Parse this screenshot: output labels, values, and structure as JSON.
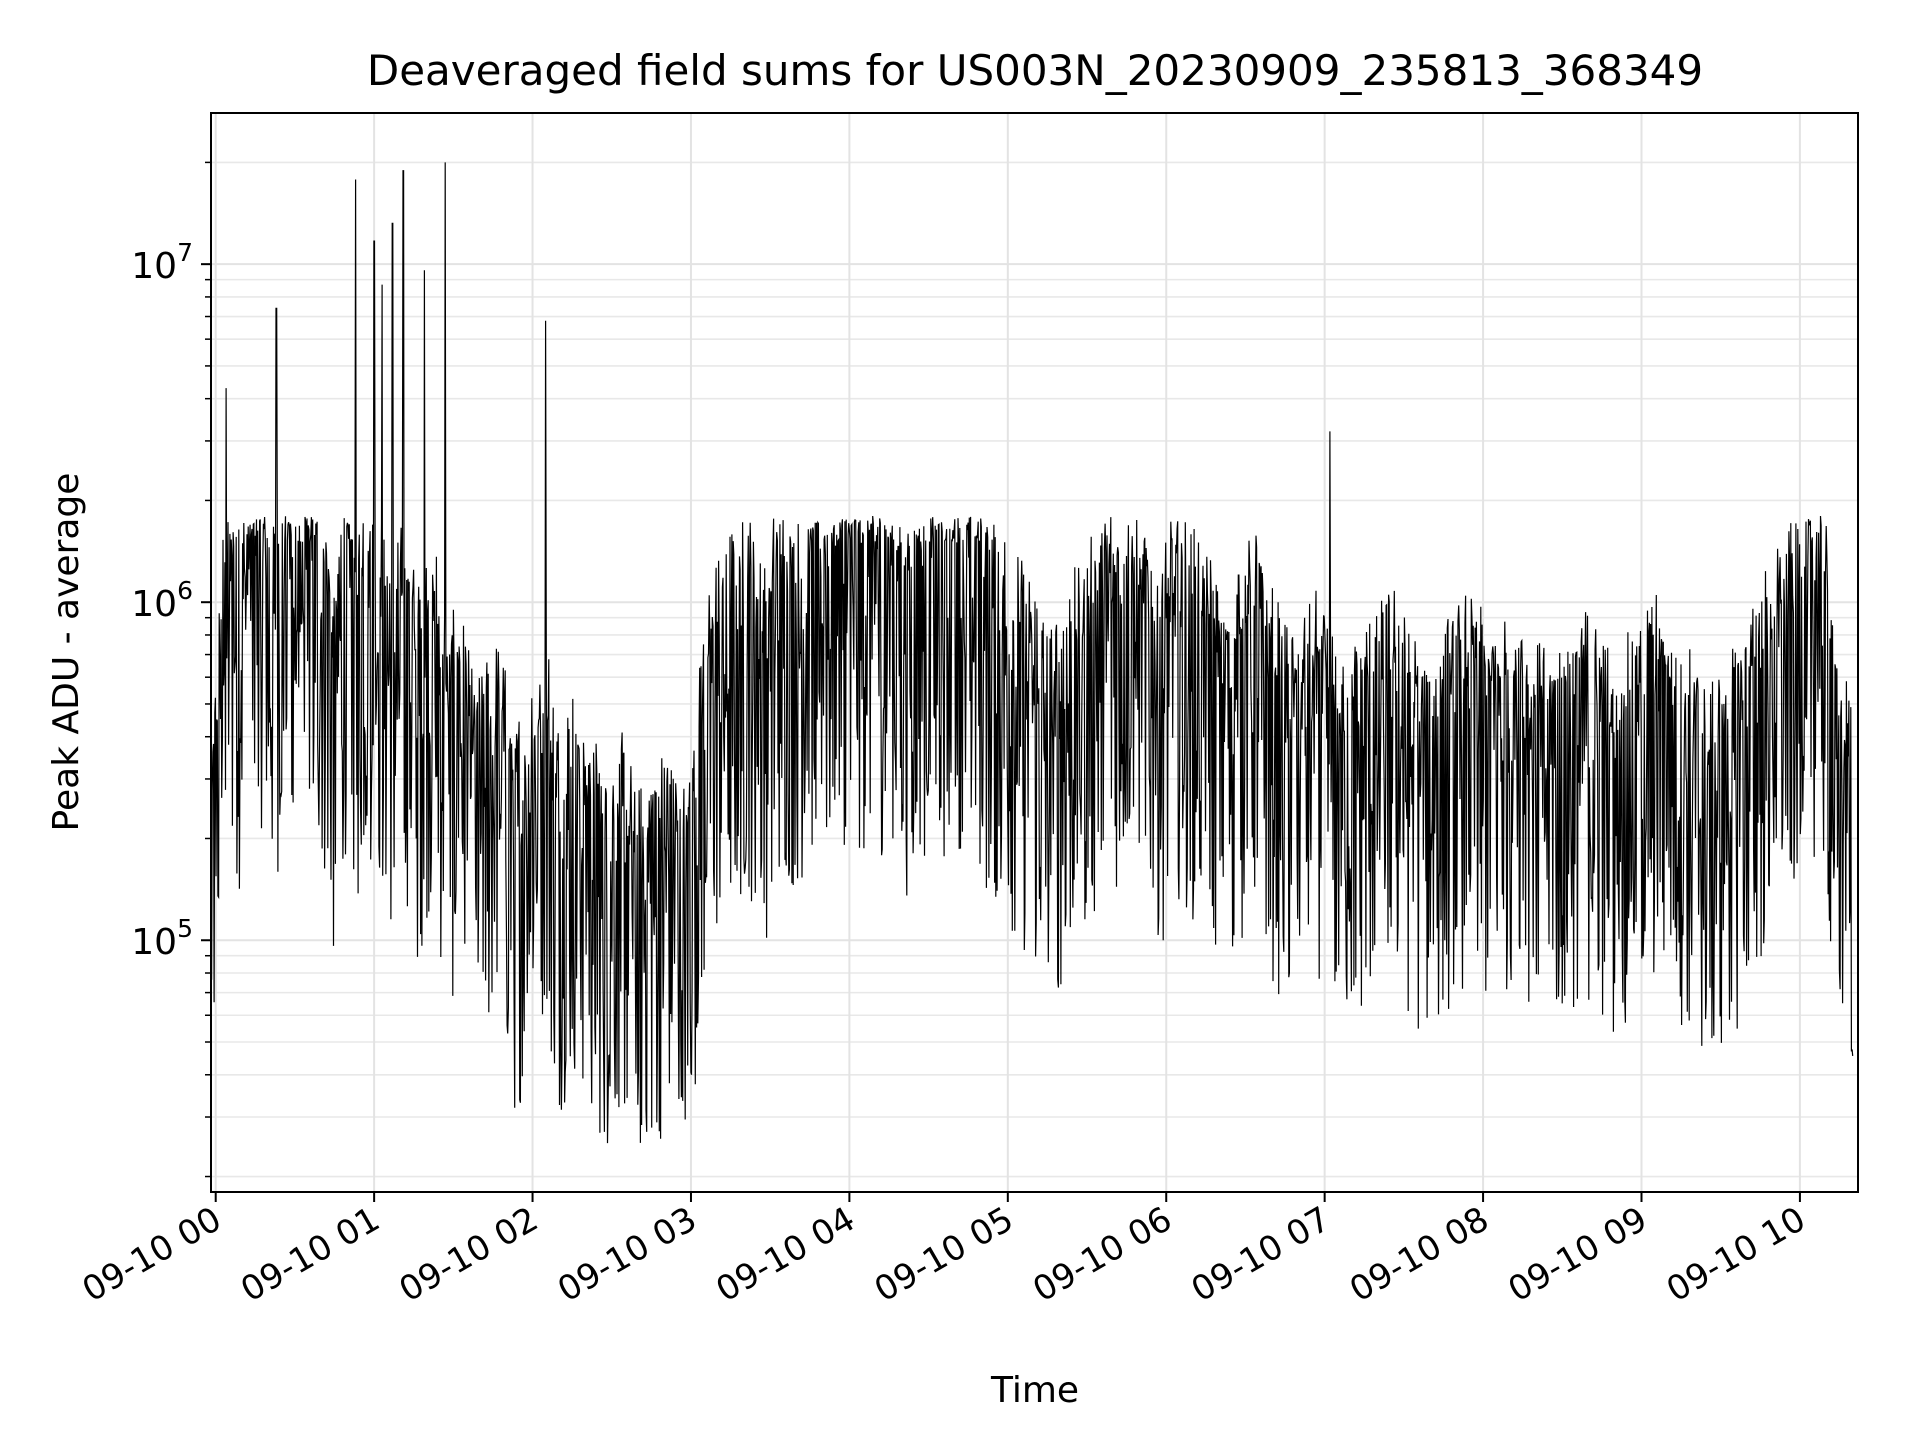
{
  "chart_data": {
    "type": "line",
    "title": "Deaveraged field sums for US003N_20230909_235813_368349",
    "xlabel": "Time",
    "ylabel": "Peak ADU - average",
    "yscale": "log",
    "grid": true,
    "legend": "none",
    "x_range": [
      "2023-09-09 23:58:13",
      "2023-09-10 10:22:00"
    ],
    "ylim": [
      18000,
      28000000
    ],
    "x_ticks": [
      "09-10 00",
      "09-10 01",
      "09-10 02",
      "09-10 03",
      "09-10 04",
      "09-10 05",
      "09-10 06",
      "09-10 07",
      "09-10 08",
      "09-10 09",
      "09-10 10"
    ],
    "y_ticks": [
      {
        "base": "10",
        "exp": "5",
        "value": 100000
      },
      {
        "base": "10",
        "exp": "6",
        "value": 1000000
      },
      {
        "base": "10",
        "exp": "7",
        "value": 10000000
      }
    ],
    "line_color": "#000000",
    "series": [
      {
        "x": [
          "2023-09-09 23:58:13",
          "2023-09-10 00:04",
          "2023-09-10 00:10",
          "2023-09-10 00:16",
          "2023-09-10 00:20",
          "2023-09-10 00:26",
          "2023-09-10 00:30",
          "2023-09-10 00:34",
          "2023-09-10 00:38",
          "2023-09-10 00:42",
          "2023-09-10 00:45",
          "2023-09-10 00:50",
          "2023-09-10 00:53",
          "2023-09-10 00:56",
          "2023-09-10 01:00",
          "2023-09-10 01:04",
          "2023-09-10 01:08",
          "2023-09-10 01:12",
          "2023-09-10 01:16",
          "2023-09-10 01:20",
          "2023-09-10 01:24",
          "2023-09-10 01:28",
          "2023-09-10 01:33",
          "2023-09-10 01:38",
          "2023-09-10 01:43",
          "2023-09-10 01:48",
          "2023-09-10 01:53",
          "2023-09-10 01:58",
          "2023-09-10 02:05",
          "2023-09-10 02:10",
          "2023-09-10 02:16",
          "2023-09-10 02:22",
          "2023-09-10 02:28",
          "2023-09-10 02:34",
          "2023-09-10 02:40",
          "2023-09-10 02:46",
          "2023-09-10 02:52",
          "2023-09-10 02:58",
          "2023-09-10 03:04",
          "2023-09-10 03:10",
          "2023-09-10 03:16",
          "2023-09-10 03:22",
          "2023-09-10 03:28",
          "2023-09-10 03:34",
          "2023-09-10 03:40",
          "2023-09-10 03:46",
          "2023-09-10 03:52",
          "2023-09-10 03:58",
          "2023-09-10 04:04",
          "2023-09-10 04:10",
          "2023-09-10 04:16",
          "2023-09-10 04:22",
          "2023-09-10 04:28",
          "2023-09-10 04:34",
          "2023-09-10 04:40",
          "2023-09-10 04:46",
          "2023-09-10 04:52",
          "2023-09-10 04:58",
          "2023-09-10 05:04",
          "2023-09-10 05:10",
          "2023-09-10 05:16",
          "2023-09-10 05:22",
          "2023-09-10 05:28",
          "2023-09-10 05:34",
          "2023-09-10 05:40",
          "2023-09-10 05:46",
          "2023-09-10 05:52",
          "2023-09-10 05:58",
          "2023-09-10 06:04",
          "2023-09-10 06:10",
          "2023-09-10 06:16",
          "2023-09-10 06:22",
          "2023-09-10 06:28",
          "2023-09-10 06:34",
          "2023-09-10 06:40",
          "2023-09-10 06:46",
          "2023-09-10 06:52",
          "2023-09-10 06:58",
          "2023-09-10 07:02",
          "2023-09-10 07:08",
          "2023-09-10 07:14",
          "2023-09-10 07:20",
          "2023-09-10 07:26",
          "2023-09-10 07:32",
          "2023-09-10 07:38",
          "2023-09-10 07:44",
          "2023-09-10 07:50",
          "2023-09-10 07:56",
          "2023-09-10 08:02",
          "2023-09-10 08:08",
          "2023-09-10 08:14",
          "2023-09-10 08:20",
          "2023-09-10 08:26",
          "2023-09-10 08:32",
          "2023-09-10 08:38",
          "2023-09-10 08:44",
          "2023-09-10 08:50",
          "2023-09-10 08:56",
          "2023-09-10 09:02",
          "2023-09-10 09:08",
          "2023-09-10 09:14",
          "2023-09-10 09:20",
          "2023-09-10 09:26",
          "2023-09-10 09:32",
          "2023-09-10 09:38",
          "2023-09-10 09:44",
          "2023-09-10 09:50",
          "2023-09-10 09:56",
          "2023-09-10 10:02",
          "2023-09-10 10:08",
          "2023-09-10 10:14",
          "2023-09-10 10:20"
        ],
        "y": [
          120000,
          900000,
          700000,
          1500000,
          600000,
          1000000,
          800000,
          1200000,
          900000,
          700000,
          400000,
          1100000,
          600000,
          800000,
          900000,
          600000,
          500000,
          700000,
          400000,
          600000,
          500000,
          300000,
          400000,
          200000,
          250000,
          300000,
          150000,
          200000,
          300000,
          150000,
          200000,
          150000,
          120000,
          150000,
          100000,
          120000,
          150000,
          100000,
          300000,
          500000,
          600000,
          700000,
          500000,
          800000,
          700000,
          900000,
          800000,
          1000000,
          900000,
          1000000,
          800000,
          700000,
          900000,
          800000,
          1000000,
          900000,
          700000,
          600000,
          500000,
          400000,
          300000,
          400000,
          500000,
          600000,
          700000,
          800000,
          600000,
          500000,
          700000,
          600000,
          500000,
          400000,
          500000,
          600000,
          400000,
          300000,
          350000,
          400000,
          300000,
          250000,
          300000,
          350000,
          400000,
          300000,
          250000,
          300000,
          350000,
          400000,
          300000,
          350000,
          400000,
          300000,
          250000,
          300000,
          350000,
          300000,
          250000,
          300000,
          350000,
          400000,
          300000,
          250000,
          200000,
          250000,
          300000,
          400000,
          500000,
          600000,
          800000,
          1000000,
          250000,
          200000
        ]
      }
    ],
    "peaks": {
      "x": [
        "2023-09-10 00:04",
        "2023-09-10 00:23",
        "2023-09-10 00:53",
        "2023-09-10 01:00",
        "2023-09-10 01:03",
        "2023-09-10 01:07",
        "2023-09-10 01:11",
        "2023-09-10 01:19",
        "2023-09-10 01:27",
        "2023-09-10 02:05",
        "2023-09-10 07:02"
      ],
      "y": [
        4300000,
        7400000,
        17800000,
        11700000,
        8700000,
        13200000,
        18900000,
        9600000,
        20000000,
        6800000,
        3200000
      ]
    }
  }
}
